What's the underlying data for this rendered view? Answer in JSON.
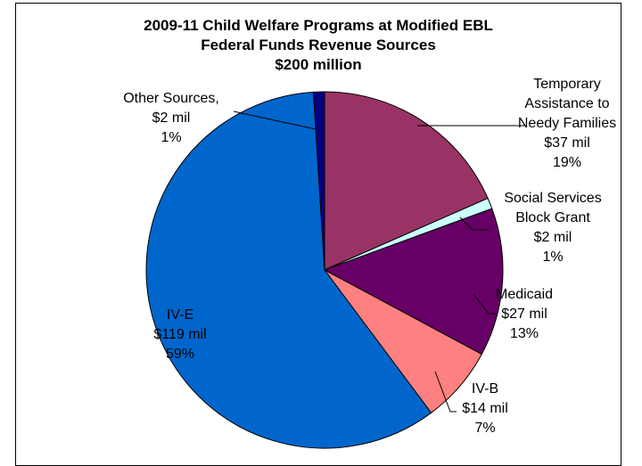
{
  "chart_data": {
    "type": "pie",
    "title_lines": [
      "2009-11 Child Welfare Programs at Modified EBL",
      "Federal Funds Revenue Sources",
      "$200 million"
    ],
    "slices": [
      {
        "name": "Temporary Assistance to Needy Families",
        "amount": "$37 mil",
        "percent": "19%",
        "value": 37,
        "color": "#993366"
      },
      {
        "name": "Social Services Block Grant",
        "amount": "$2 mil",
        "percent": "1%",
        "value": 2,
        "color": "#CCFFFF"
      },
      {
        "name": "Medicaid",
        "amount": "$27 mil",
        "percent": "13%",
        "value": 27,
        "color": "#660066"
      },
      {
        "name": "IV-B",
        "amount": "$14 mil",
        "percent": "7%",
        "value": 14,
        "color": "#FF8080"
      },
      {
        "name": "IV-E",
        "amount": "$119 mil",
        "percent": "59%",
        "value": 119,
        "color": "#0066CC"
      },
      {
        "name": "Other Sources,",
        "amount": "$2 mil",
        "percent": "1%",
        "value": 2,
        "color": "#000080"
      }
    ],
    "labels": {
      "tanf": [
        "Temporary",
        "Assistance to",
        "Needy Families",
        "$37 mil",
        "19%"
      ],
      "ssbg": [
        "Social Services",
        "Block Grant",
        "$2 mil",
        "1%"
      ],
      "medicaid": [
        "Medicaid",
        "$27 mil",
        "13%"
      ],
      "ivb": [
        "IV-B",
        "$14 mil",
        "7%"
      ],
      "ive": [
        "IV-E",
        "$119 mil",
        "59%"
      ],
      "other": [
        "Other Sources,",
        "$2 mil",
        "1%"
      ]
    }
  }
}
